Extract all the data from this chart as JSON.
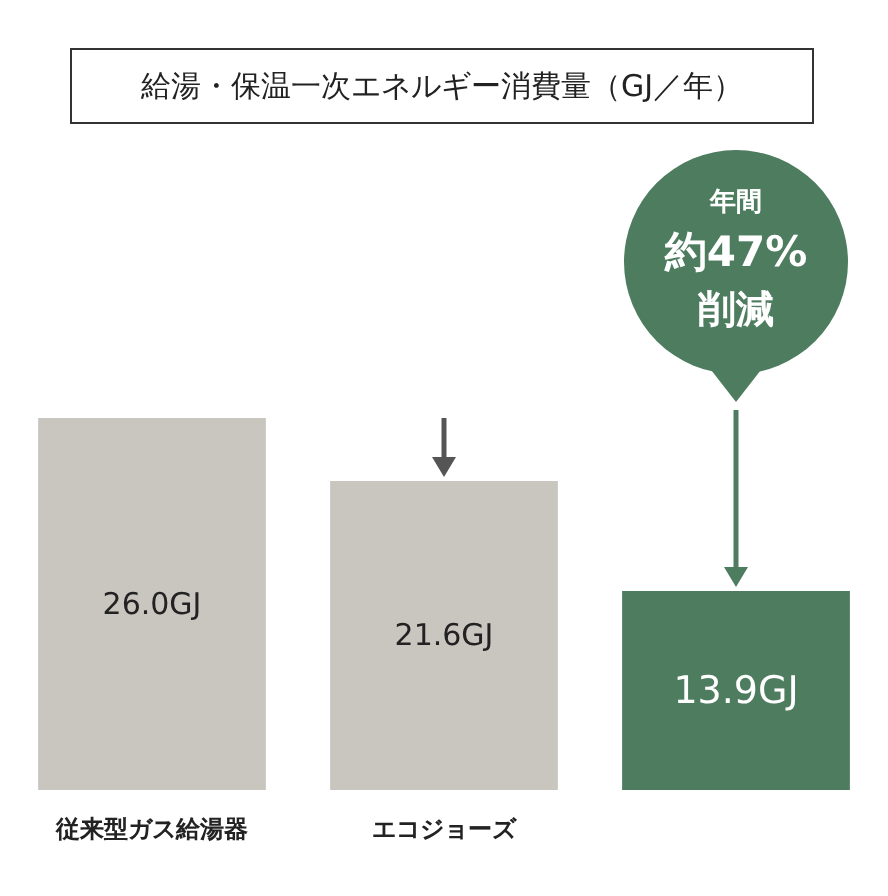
{
  "chart_data": {
    "type": "bar",
    "title": "給湯・保温一次エネルギー消費量（GJ／年）",
    "categories": [
      "従来型ガス給湯器",
      "エコジョーズ",
      null
    ],
    "values": [
      26.0,
      21.6,
      13.9
    ],
    "colors": [
      "#c9c6c0",
      "#c9c6c0",
      "#4d7c5f"
    ],
    "value_labels": [
      "26.0GJ",
      "21.6GJ",
      "13.9GJ"
    ],
    "annotations": [
      "年間",
      "約47%",
      "削減"
    ]
  }
}
